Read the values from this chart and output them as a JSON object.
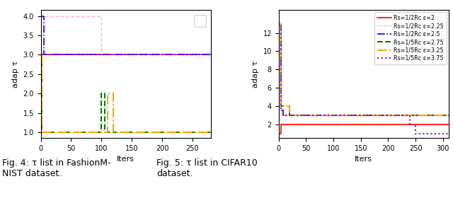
{
  "xlabel": "Iters",
  "ylabel": "adap τ",
  "legend_labels": [
    "Rs=1/2Rc ε=2",
    "Rs=1/2Rc ε=2.25",
    "Rs=1/2Rc ε=2.5",
    "Rs=1/5Rc ε=2.75",
    "Rs=1/5Rc ε=3.25",
    "Rs=1/5Rc ε=3.75"
  ],
  "line_colors": [
    "#FF0000",
    "#FFB6C1",
    "#0000FF",
    "#008000",
    "#FFA500",
    "#9400D3"
  ],
  "line_styles": [
    "-",
    "--",
    "-.",
    "--",
    "-.",
    ":"
  ],
  "line_widths": [
    1.2,
    1.0,
    1.2,
    1.5,
    1.5,
    1.5
  ],
  "fig4": {
    "xlim": [
      0,
      280
    ],
    "ylim": [
      0.85,
      4.15
    ],
    "yticks": [
      1.0,
      1.5,
      2.0,
      2.5,
      3.0,
      3.5,
      4.0
    ],
    "xticks": [
      0,
      50,
      100,
      150,
      200,
      250
    ],
    "series": [
      [
        [
          0,
          280
        ],
        [
          3.0,
          3.0
        ]
      ],
      [
        [
          0,
          0,
          100,
          100,
          280
        ],
        [
          3.0,
          4.0,
          4.0,
          3.0,
          3.0
        ]
      ],
      [
        [
          0,
          0,
          5,
          5,
          280
        ],
        [
          3.0,
          4.0,
          4.0,
          3.0,
          3.0
        ]
      ],
      [
        [
          0,
          0,
          2,
          2,
          100,
          100,
          105,
          105,
          280
        ],
        [
          1.0,
          3.0,
          3.0,
          1.0,
          1.0,
          2.0,
          2.0,
          1.0,
          1.0
        ]
      ],
      [
        [
          0,
          0,
          2,
          2,
          110,
          110,
          120,
          120,
          280
        ],
        [
          1.0,
          3.0,
          3.0,
          1.0,
          1.0,
          2.0,
          2.0,
          1.0,
          1.0
        ]
      ],
      [
        [
          0,
          280
        ],
        [
          3.0,
          3.0
        ]
      ]
    ]
  },
  "fig5": {
    "xlim": [
      0,
      310
    ],
    "ylim": [
      0.5,
      14.5
    ],
    "yticks": [
      2,
      4,
      6,
      8,
      10,
      12
    ],
    "xticks": [
      0,
      50,
      100,
      150,
      200,
      250,
      300
    ],
    "series": [
      [
        [
          0,
          0,
          5,
          5,
          10,
          10,
          310
        ],
        [
          3.0,
          1.0,
          1.0,
          2.0,
          2.0,
          2.0,
          2.0
        ]
      ],
      [
        [
          0,
          0,
          5,
          5,
          8,
          8,
          310
        ],
        [
          3.5,
          13.0,
          13.0,
          3.5,
          3.5,
          3.0,
          3.0
        ]
      ],
      [
        [
          0,
          0,
          5,
          5,
          8,
          8,
          310
        ],
        [
          3.5,
          13.0,
          13.0,
          3.5,
          3.5,
          3.0,
          3.0
        ]
      ],
      [
        [
          0,
          0,
          5,
          5,
          10,
          10,
          20,
          20,
          40,
          40,
          310
        ],
        [
          4.0,
          13.0,
          13.0,
          4.0,
          4.0,
          4.0,
          4.0,
          3.0,
          3.0,
          3.0,
          3.0
        ]
      ],
      [
        [
          0,
          0,
          5,
          5,
          10,
          10,
          20,
          20,
          40,
          40,
          310
        ],
        [
          4.0,
          13.0,
          13.0,
          4.0,
          4.0,
          4.0,
          4.0,
          3.0,
          3.0,
          3.0,
          3.0
        ]
      ],
      [
        [
          0,
          0,
          5,
          5,
          8,
          8,
          240,
          240,
          250,
          250,
          310
        ],
        [
          3.5,
          13.0,
          13.0,
          3.5,
          3.5,
          3.0,
          3.0,
          2.0,
          2.0,
          1.0,
          1.0
        ]
      ]
    ]
  },
  "caption4": "Fig. 4: τ list in FashionM-\nNIST dataset.",
  "caption5": "Fig. 5: τ list in CIFAR10\ndataset.",
  "caption_fontsize": 9,
  "bg_color": "#ffffff"
}
